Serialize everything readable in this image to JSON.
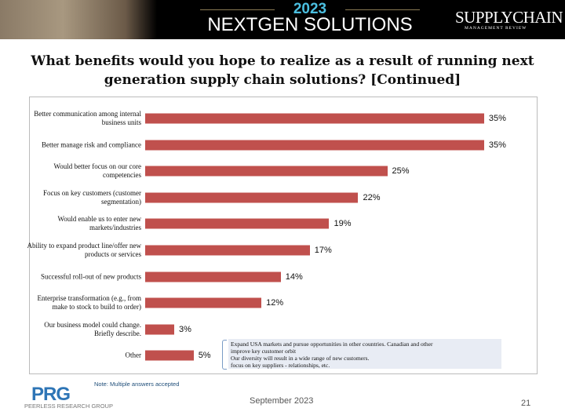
{
  "header": {
    "year": "2023",
    "title": "NEXTGEN SOLUTIONS",
    "logo": "SUPPLYCHAIN MANAGEMENT REVIEW"
  },
  "chart_data": {
    "type": "bar",
    "orientation": "horizontal",
    "title": "What benefits would you hope to realize as a result of running next generation supply chain solutions? [Continued]",
    "categories": [
      "Better communication among internal business units",
      "Better manage risk and compliance",
      "Would better focus on our core competencies",
      "Focus on key customers (customer segmentation)",
      "Would enable us to enter new markets/industries",
      "Ability to expand product line/offer new products or services",
      "Successful roll-out of new products",
      "Enterprise transformation (e.g., from make to stock to build to order)",
      "Our business model could change. Briefly describe.",
      "Other"
    ],
    "values": [
      35,
      35,
      25,
      22,
      19,
      17,
      14,
      12,
      3,
      5
    ],
    "labels": [
      "35%",
      "35%",
      "25%",
      "22%",
      "19%",
      "17%",
      "14%",
      "12%",
      "3%",
      "5%"
    ],
    "unit": "%",
    "color": "#c0504d",
    "grid": false,
    "other_responses": [
      "Expand USA markets and pursue opportunities in other countries.   Canadian and other",
      "improve key customer orbit",
      "Our diversity will result in a wide range of new customers.",
      "focus on key suppliers - relationships, etc."
    ]
  },
  "footer": {
    "note": "Note: Multiple answers accepted",
    "logo": "PRG",
    "logo_sub": "PEERLESS RESEARCH GROUP",
    "date": "September 2023",
    "page": "21"
  }
}
